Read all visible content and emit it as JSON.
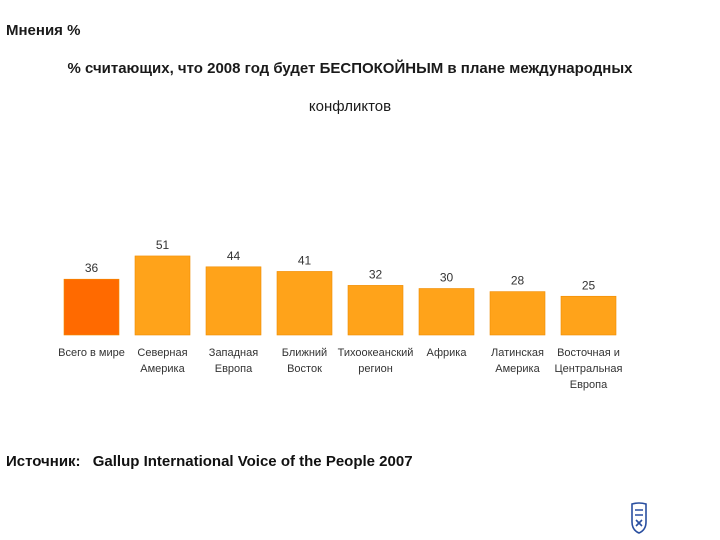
{
  "page": {
    "header": "Мнения %",
    "source_label": "Источник:",
    "source_text": "Gallup International Voice of the People 2007"
  },
  "colors": {
    "highlight": "#ff6a00",
    "bar": "#ffa31a",
    "bar_edge": "#f08c00"
  },
  "chart_data": {
    "type": "bar",
    "title": "% считающих, что 2008 год будет БЕСПОКОЙНЫМ в плане международных",
    "subtitle": "конфликтов",
    "xlabel": "",
    "ylabel": "",
    "ylim": [
      0,
      60
    ],
    "grid": false,
    "categories": [
      [
        "Всего в мире"
      ],
      [
        "Северная",
        "Америка"
      ],
      [
        "Западная",
        "Европа"
      ],
      [
        "Ближний",
        "Восток"
      ],
      [
        "Тихоокеанский",
        "регион"
      ],
      [
        "Африка"
      ],
      [
        "Латинская",
        "Америка"
      ],
      [
        "Восточная и",
        "Центральная",
        "Европа"
      ]
    ],
    "values": [
      36,
      51,
      44,
      41,
      32,
      30,
      28,
      25
    ],
    "highlight_index": 0
  }
}
